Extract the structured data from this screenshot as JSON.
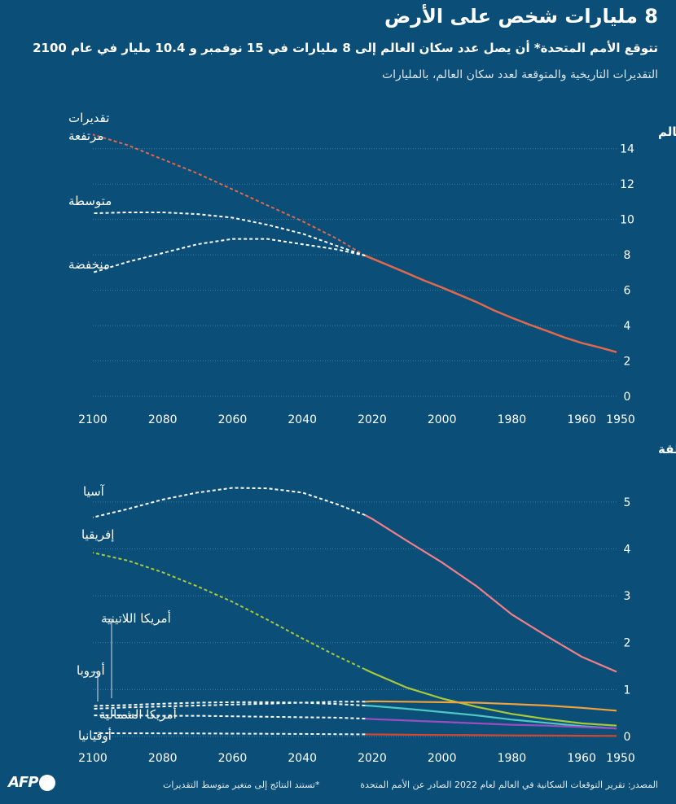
{
  "header": {
    "title": "8 مليارات شخص على الأرض",
    "subtitle": "تتوقع الأمم المتحدة* أن يصل عدد سكان العالم إلى 8 مليارات في 15 نوفمبر و 10.4 مليار في عام 2100",
    "description": "التقديرات التاريخية والمتوقعة لعدد سكان العالم، بالمليارات"
  },
  "footer": {
    "source": "المصدر: تقرير التوقعات السكانية في العالم لعام 2022 الصادر عن الأمم المتحدة",
    "note": "*تستند النتائج إلى متغير متوسط التقديرات",
    "logo": "AFP"
  },
  "colors": {
    "background": "#0b4f78",
    "world": "#e0684c",
    "asia": "#f07f8a",
    "africa": "#a9c93a",
    "latin_america": "#4fc7c2",
    "europe": "#f0a23c",
    "north_america": "#9b4dc0",
    "oceania": "#d8452f",
    "projection": "#ffffff"
  },
  "chart_data": [
    {
      "type": "line",
      "section_label": "في العالم",
      "x_direction": "reversed",
      "xlim": [
        1950,
        2100
      ],
      "ylim": [
        0,
        15
      ],
      "yticks": [
        "0",
        "2",
        "4",
        "6",
        "8",
        "10",
        "12",
        "14"
      ],
      "ytick_values": [
        0,
        2,
        4,
        6,
        8,
        10,
        12,
        14
      ],
      "xticks": [
        "2100",
        "2080",
        "2060",
        "2040",
        "2020",
        "2000",
        "1980",
        "1960",
        "1950"
      ],
      "xtick_values": [
        2100,
        2080,
        2060,
        2040,
        2020,
        2000,
        1980,
        1960,
        1950
      ],
      "historical": {
        "name": "العالم",
        "x": [
          1950,
          1955,
          1960,
          1965,
          1970,
          1975,
          1980,
          1985,
          1990,
          1995,
          2000,
          2005,
          2010,
          2015,
          2020,
          2022
        ],
        "values": [
          2.5,
          2.77,
          3.02,
          3.33,
          3.7,
          4.06,
          4.44,
          4.85,
          5.32,
          5.74,
          6.15,
          6.54,
          6.96,
          7.38,
          7.79,
          7.95
        ]
      },
      "projections": [
        {
          "name": "تقديرات مرتفعة",
          "x": [
            2022,
            2030,
            2040,
            2050,
            2060,
            2070,
            2080,
            2090,
            2100
          ],
          "values": [
            7.95,
            8.9,
            9.9,
            10.8,
            11.7,
            12.6,
            13.4,
            14.2,
            14.8
          ]
        },
        {
          "name": "متوسطة",
          "x": [
            2022,
            2030,
            2040,
            2050,
            2060,
            2070,
            2080,
            2090,
            2100
          ],
          "values": [
            7.95,
            8.5,
            9.2,
            9.7,
            10.1,
            10.3,
            10.4,
            10.4,
            10.35
          ]
        },
        {
          "name": "منخفضة",
          "x": [
            2022,
            2030,
            2040,
            2050,
            2060,
            2070,
            2080,
            2090,
            2100
          ],
          "values": [
            7.95,
            8.3,
            8.6,
            8.9,
            8.9,
            8.6,
            8.1,
            7.6,
            7.0
          ]
        }
      ],
      "labels": {
        "high_line1": "تقديرات",
        "high_line2": "مرتفعة",
        "medium": "متوسطة",
        "low": "منخفضة"
      }
    },
    {
      "type": "line",
      "section_label": "حسب المنطقة",
      "x_direction": "reversed",
      "xlim": [
        1950,
        2100
      ],
      "ylim": [
        0,
        5.5
      ],
      "yticks": [
        "0",
        "1",
        "2",
        "3",
        "4",
        "5"
      ],
      "ytick_values": [
        0,
        1,
        2,
        3,
        4,
        5
      ],
      "xticks": [
        "2100",
        "2080",
        "2060",
        "2040",
        "2020",
        "2000",
        "1980",
        "1960",
        "1950"
      ],
      "xtick_values": [
        2100,
        2080,
        2060,
        2040,
        2020,
        2000,
        1980,
        1960,
        1950
      ],
      "series": [
        {
          "key": "asia",
          "name": "آسيا",
          "x_hist": [
            1950,
            1960,
            1970,
            1980,
            1990,
            2000,
            2010,
            2020,
            2022
          ],
          "hist": [
            1.38,
            1.7,
            2.14,
            2.6,
            3.2,
            3.71,
            4.17,
            4.64,
            4.72
          ],
          "x_proj": [
            2022,
            2030,
            2040,
            2050,
            2060,
            2070,
            2080,
            2090,
            2100
          ],
          "proj": [
            4.72,
            4.95,
            5.2,
            5.29,
            5.3,
            5.2,
            5.05,
            4.85,
            4.67
          ]
        },
        {
          "key": "africa",
          "name": "إفريقيا",
          "x_hist": [
            1950,
            1960,
            1970,
            1980,
            1990,
            2000,
            2010,
            2020,
            2022
          ],
          "hist": [
            0.23,
            0.28,
            0.37,
            0.48,
            0.63,
            0.81,
            1.04,
            1.36,
            1.43
          ],
          "x_proj": [
            2022,
            2030,
            2040,
            2050,
            2060,
            2070,
            2080,
            2090,
            2100
          ],
          "proj": [
            1.43,
            1.71,
            2.09,
            2.49,
            2.87,
            3.2,
            3.5,
            3.75,
            3.92
          ]
        },
        {
          "key": "latin_america",
          "name": "أمريكا اللاتينية",
          "x_hist": [
            1950,
            1960,
            1970,
            1980,
            1990,
            2000,
            2010,
            2020,
            2022
          ],
          "hist": [
            0.17,
            0.22,
            0.29,
            0.36,
            0.45,
            0.52,
            0.59,
            0.65,
            0.66
          ],
          "x_proj": [
            2022,
            2030,
            2040,
            2050,
            2060,
            2070,
            2080,
            2090,
            2100
          ],
          "proj": [
            0.66,
            0.69,
            0.72,
            0.73,
            0.73,
            0.72,
            0.7,
            0.67,
            0.65
          ]
        },
        {
          "key": "europe",
          "name": "أوروبا",
          "x_hist": [
            1950,
            1960,
            1970,
            1980,
            1990,
            2000,
            2010,
            2020,
            2022
          ],
          "hist": [
            0.55,
            0.61,
            0.66,
            0.69,
            0.72,
            0.73,
            0.74,
            0.75,
            0.74
          ],
          "x_proj": [
            2022,
            2030,
            2040,
            2050,
            2060,
            2070,
            2080,
            2090,
            2100
          ],
          "proj": [
            0.74,
            0.74,
            0.72,
            0.7,
            0.68,
            0.66,
            0.64,
            0.62,
            0.59
          ]
        },
        {
          "key": "north_america",
          "name": "أمريكا الشمالية",
          "x_hist": [
            1950,
            1960,
            1970,
            1980,
            1990,
            2000,
            2010,
            2020,
            2022
          ],
          "hist": [
            0.17,
            0.2,
            0.23,
            0.25,
            0.28,
            0.31,
            0.34,
            0.37,
            0.38
          ],
          "x_proj": [
            2022,
            2030,
            2040,
            2050,
            2060,
            2070,
            2080,
            2090,
            2100
          ],
          "proj": [
            0.38,
            0.4,
            0.41,
            0.42,
            0.43,
            0.44,
            0.44,
            0.45,
            0.45
          ]
        },
        {
          "key": "oceania",
          "name": "أوقيانيا",
          "x_hist": [
            1950,
            1960,
            1970,
            1980,
            1990,
            2000,
            2010,
            2020,
            2022
          ],
          "hist": [
            0.013,
            0.016,
            0.02,
            0.023,
            0.027,
            0.031,
            0.037,
            0.043,
            0.045
          ],
          "x_proj": [
            2022,
            2030,
            2040,
            2050,
            2060,
            2070,
            2080,
            2090,
            2100
          ],
          "proj": [
            0.045,
            0.049,
            0.054,
            0.058,
            0.061,
            0.064,
            0.066,
            0.068,
            0.069
          ]
        }
      ]
    }
  ]
}
